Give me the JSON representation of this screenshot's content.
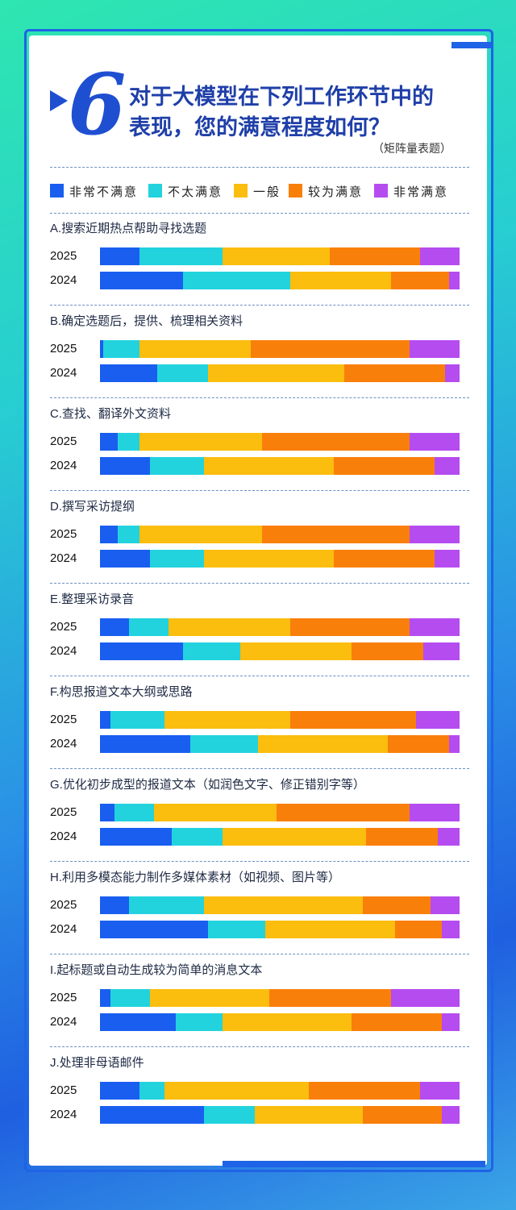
{
  "header": {
    "number": "6",
    "title_line1": "对于大模型在下列工作环节中的",
    "title_line2": "表现，您的满意程度如何？",
    "subtitle": "（矩阵量表题）"
  },
  "colors": {
    "very_dissatisfied": "#1a5ef0",
    "not_very_satisfied": "#22d3de",
    "neutral": "#fbbd0e",
    "fairly_satisfied": "#f97f0b",
    "very_satisfied": "#b54cf0",
    "frame": "#1f63e6"
  },
  "chart_data": {
    "type": "bar",
    "orientation": "horizontal-stacked-100",
    "legend_position": "top",
    "legend": [
      "非常不满意",
      "不太满意",
      "一般",
      "较为满意",
      "非常满意"
    ],
    "years": [
      "2025",
      "2024"
    ],
    "categories": [
      {
        "label": "A.搜索近期热点帮助寻找选题",
        "2025": [
          11,
          23,
          30,
          25,
          11
        ],
        "2024": [
          23,
          30,
          28,
          16,
          3
        ]
      },
      {
        "label": "B.确定选题后，提供、梳理相关资料",
        "2025": [
          1,
          10,
          31,
          44,
          14
        ],
        "2024": [
          16,
          14,
          38,
          28,
          4
        ]
      },
      {
        "label": "C.查找、翻译外文资料",
        "2025": [
          5,
          6,
          34,
          41,
          14
        ],
        "2024": [
          14,
          15,
          36,
          28,
          7
        ]
      },
      {
        "label": "D.撰写采访提纲",
        "2025": [
          5,
          6,
          34,
          41,
          14
        ],
        "2024": [
          14,
          15,
          36,
          28,
          7
        ]
      },
      {
        "label": "E.整理采访录音",
        "2025": [
          8,
          11,
          34,
          33,
          14
        ],
        "2024": [
          23,
          16,
          31,
          20,
          10
        ]
      },
      {
        "label": "F.构思报道文本大纲或思路",
        "2025": [
          3,
          15,
          35,
          35,
          12
        ],
        "2024": [
          25,
          19,
          36,
          17,
          3
        ]
      },
      {
        "label": "G.优化初步成型的报道文本（如润色文字、修正错别字等）",
        "2025": [
          4,
          11,
          34,
          37,
          14
        ],
        "2024": [
          20,
          14,
          40,
          20,
          6
        ]
      },
      {
        "label": "H.利用多模态能力制作多媒体素材（如视频、图片等）",
        "2025": [
          8,
          21,
          44,
          19,
          8
        ],
        "2024": [
          30,
          16,
          36,
          13,
          5
        ]
      },
      {
        "label": "I.起标题或自动生成较为简单的消息文本",
        "2025": [
          3,
          11,
          33,
          34,
          19
        ],
        "2024": [
          21,
          13,
          36,
          25,
          5
        ]
      },
      {
        "label": "J.处理非母语邮件",
        "2025": [
          11,
          7,
          40,
          31,
          11
        ],
        "2024": [
          29,
          14,
          30,
          22,
          5
        ]
      }
    ]
  }
}
